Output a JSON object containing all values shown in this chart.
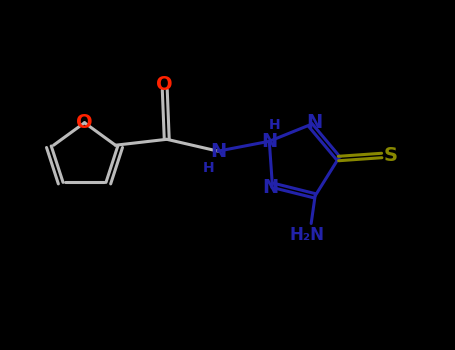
{
  "bg": "#000000",
  "gray": "#bbbbbb",
  "blue": "#2222aa",
  "red": "#ff2200",
  "yg": "#888800",
  "white": "#ffffff",
  "figsize": [
    4.55,
    3.5
  ],
  "dpi": 100,
  "xlim": [
    0.0,
    4.6
  ],
  "ylim": [
    0.5,
    3.8
  ]
}
